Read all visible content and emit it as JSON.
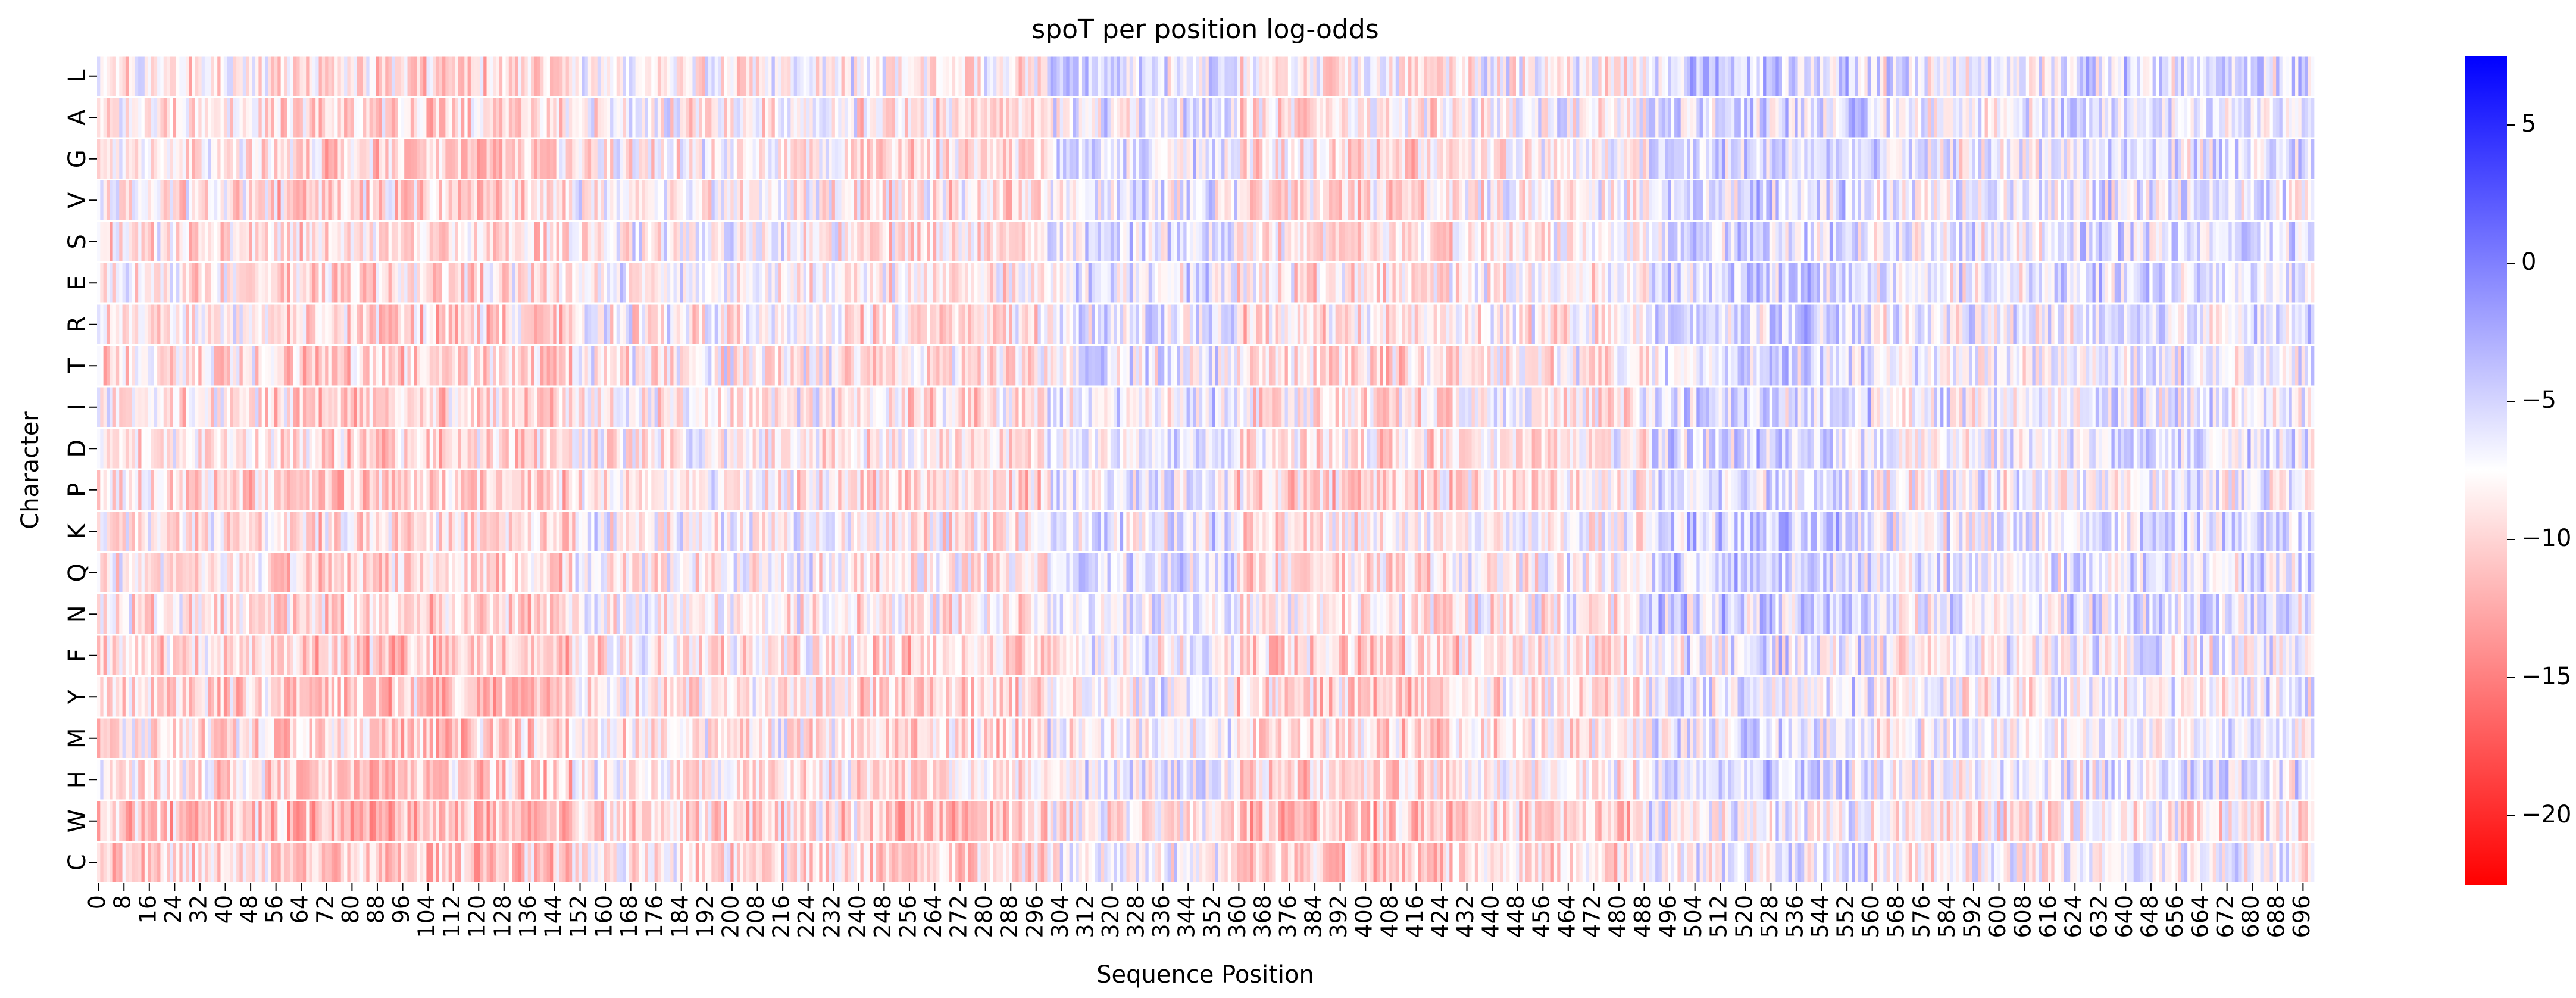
{
  "chart_data": {
    "type": "heatmap",
    "title": "spoT per position log-odds",
    "xlabel": "Sequence Position",
    "ylabel": "Character",
    "rows": [
      "L",
      "A",
      "G",
      "V",
      "S",
      "E",
      "R",
      "T",
      "I",
      "D",
      "P",
      "K",
      "Q",
      "N",
      "F",
      "Y",
      "M",
      "H",
      "W",
      "C"
    ],
    "x_range": [
      0,
      700
    ],
    "x_tick_labels": [
      "0",
      "8",
      "16",
      "24",
      "32",
      "40",
      "48",
      "56",
      "64",
      "72",
      "80",
      "88",
      "96",
      "104",
      "112",
      "120",
      "128",
      "136",
      "144",
      "152",
      "160",
      "168",
      "176",
      "184",
      "192",
      "200",
      "208",
      "216",
      "224",
      "232",
      "240",
      "248",
      "256",
      "264",
      "272",
      "280",
      "288",
      "296",
      "304",
      "312",
      "320",
      "328",
      "336",
      "344",
      "352",
      "360",
      "368",
      "376",
      "384",
      "392",
      "400",
      "408",
      "416",
      "424",
      "432",
      "440",
      "448",
      "456",
      "464",
      "472",
      "480",
      "488",
      "496",
      "504",
      "512",
      "520",
      "528",
      "536",
      "544",
      "552",
      "560",
      "568",
      "576",
      "584",
      "592",
      "600",
      "608",
      "616",
      "624",
      "632",
      "640",
      "648",
      "656",
      "664",
      "672",
      "680",
      "688",
      "696"
    ],
    "colorbar": {
      "min": -22.5,
      "max": 7.5,
      "center": -7.5,
      "ticks": [
        {
          "value": 5,
          "label": "5"
        },
        {
          "value": 0,
          "label": "0"
        },
        {
          "value": -5,
          "label": "−5"
        },
        {
          "value": -10,
          "label": "−10"
        },
        {
          "value": -15,
          "label": "−15"
        },
        {
          "value": -20,
          "label": "−20"
        }
      ],
      "colors": {
        "low": "#ff0000",
        "mid": "#ffffff",
        "high": "#0000ff"
      }
    },
    "grid": false,
    "legend": "right"
  }
}
